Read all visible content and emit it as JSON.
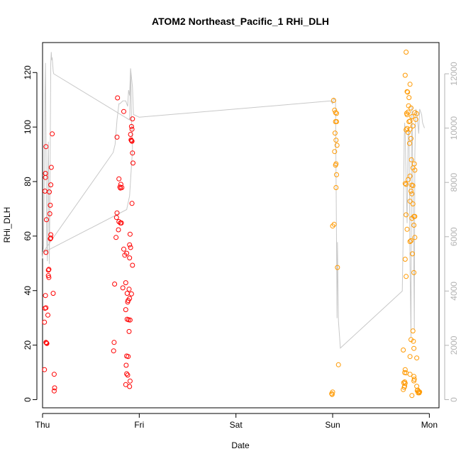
{
  "chart_data": {
    "type": "scatter",
    "title": "ATOM2 Northeast_Pacific_1 RHi_DLH",
    "xlabel": "Date",
    "ylabel": "RHi_DLH",
    "y2label": "",
    "xlim": [
      0,
      4.1
    ],
    "ylim": [
      -3,
      131
    ],
    "y2lim": [
      -300,
      13150
    ],
    "x_ticks": [
      {
        "value": 0,
        "label": "Thu"
      },
      {
        "value": 1,
        "label": "Fri"
      },
      {
        "value": 2,
        "label": "Sat"
      },
      {
        "value": 3,
        "label": "Sun"
      },
      {
        "value": 4,
        "label": "Mon"
      }
    ],
    "y_ticks": [
      0,
      20,
      40,
      60,
      80,
      100,
      120
    ],
    "y2_ticks": [
      0,
      2000,
      4000,
      6000,
      8000,
      10000,
      12000
    ],
    "grid": false,
    "legend": "none",
    "colors": {
      "series_1": "#ff0000",
      "series_2": "#ff9900",
      "altitude": "#c8c8c8"
    },
    "series": [
      {
        "color": "#ff0000",
        "marker": "open-circle",
        "points": [
          [
            0.03,
            83.0
          ],
          [
            0.03,
            81.5
          ],
          [
            0.025,
            76.5
          ],
          [
            0.035,
            92.8
          ],
          [
            0.04,
            66.0
          ],
          [
            0.035,
            54.0
          ],
          [
            0.03,
            38.2
          ],
          [
            0.025,
            33.5
          ],
          [
            0.035,
            33.7
          ],
          [
            0.02,
            28.4
          ],
          [
            0.04,
            20.8
          ],
          [
            0.035,
            21.0
          ],
          [
            0.045,
            20.6
          ],
          [
            0.02,
            11.0
          ],
          [
            0.06,
            47.5
          ],
          [
            0.065,
            47.8
          ],
          [
            0.06,
            45.5
          ],
          [
            0.065,
            44.8
          ],
          [
            0.055,
            31.0
          ],
          [
            0.07,
            76.2
          ],
          [
            0.075,
            68.2
          ],
          [
            0.08,
            71.3
          ],
          [
            0.085,
            78.8
          ],
          [
            0.09,
            85.2
          ],
          [
            0.085,
            60.5
          ],
          [
            0.08,
            59.0
          ],
          [
            0.085,
            59.3
          ],
          [
            0.1,
            97.5
          ],
          [
            0.11,
            39.0
          ],
          [
            0.12,
            9.3
          ],
          [
            0.125,
            4.3
          ],
          [
            0.12,
            3.2
          ],
          [
            0.74,
            21.0
          ],
          [
            0.735,
            17.9
          ],
          [
            0.745,
            42.4
          ],
          [
            0.77,
            96.3
          ],
          [
            0.775,
            110.7
          ],
          [
            0.79,
            81.0
          ],
          [
            0.8,
            78.0
          ],
          [
            0.81,
            79.0
          ],
          [
            0.805,
            77.6
          ],
          [
            0.82,
            77.8
          ],
          [
            0.77,
            68.5
          ],
          [
            0.765,
            66.8
          ],
          [
            0.79,
            65.3
          ],
          [
            0.805,
            64.8
          ],
          [
            0.815,
            64.8
          ],
          [
            0.785,
            62.3
          ],
          [
            0.76,
            59.5
          ],
          [
            0.84,
            55.2
          ],
          [
            0.85,
            53.0
          ],
          [
            0.83,
            41.0
          ],
          [
            0.86,
            42.9
          ],
          [
            0.875,
            39.0
          ],
          [
            0.895,
            40.5
          ],
          [
            0.9,
            37.1
          ],
          [
            0.88,
            35.8
          ],
          [
            0.885,
            36.4
          ],
          [
            0.92,
            38.8
          ],
          [
            0.86,
            33.0
          ],
          [
            0.875,
            29.5
          ],
          [
            0.89,
            29.3
          ],
          [
            0.905,
            29.2
          ],
          [
            0.895,
            25.0
          ],
          [
            0.87,
            16.0
          ],
          [
            0.865,
            12.6
          ],
          [
            0.885,
            15.8
          ],
          [
            0.87,
            9.5
          ],
          [
            0.88,
            9.0
          ],
          [
            0.905,
            6.8
          ],
          [
            0.86,
            5.5
          ],
          [
            0.9,
            4.8
          ],
          [
            0.87,
            53.7
          ],
          [
            0.9,
            52.0
          ],
          [
            0.9,
            56.8
          ],
          [
            0.91,
            55.8
          ],
          [
            0.905,
            60.7
          ],
          [
            0.93,
            49.3
          ],
          [
            0.84,
            105.7
          ],
          [
            0.915,
            95.3
          ],
          [
            0.92,
            100.2
          ],
          [
            0.925,
            99.2
          ],
          [
            0.93,
            103.0
          ],
          [
            0.91,
            97.3
          ],
          [
            0.92,
            95.0
          ],
          [
            0.925,
            94.8
          ],
          [
            0.93,
            90.5
          ],
          [
            0.935,
            86.8
          ],
          [
            0.925,
            72.0
          ]
        ]
      },
      {
        "color": "#ff9900",
        "marker": "open-circle",
        "points": [
          [
            2.99,
            2.2
          ],
          [
            3.0,
            2.8
          ],
          [
            2.995,
            1.9
          ],
          [
            3.01,
            109.8
          ],
          [
            3.02,
            106.2
          ],
          [
            3.03,
            105.3
          ],
          [
            3.04,
            105.0
          ],
          [
            3.03,
            102.0
          ],
          [
            3.04,
            102.0
          ],
          [
            3.025,
            97.8
          ],
          [
            3.035,
            95.2
          ],
          [
            3.045,
            93.3
          ],
          [
            3.02,
            91.0
          ],
          [
            3.03,
            86.0
          ],
          [
            3.035,
            86.5
          ],
          [
            3.04,
            82.5
          ],
          [
            3.035,
            77.8
          ],
          [
            3.0,
            63.7
          ],
          [
            3.015,
            64.3
          ],
          [
            3.05,
            48.5
          ],
          [
            3.06,
            12.8
          ],
          [
            3.76,
            127.5
          ],
          [
            3.75,
            119.0
          ],
          [
            3.77,
            113.0
          ],
          [
            3.775,
            112.8
          ],
          [
            3.79,
            110.8
          ],
          [
            3.785,
            107.8
          ],
          [
            3.8,
            115.7
          ],
          [
            3.81,
            107.0
          ],
          [
            3.77,
            104.5
          ],
          [
            3.765,
            105.0
          ],
          [
            3.78,
            105.5
          ],
          [
            3.8,
            102.2
          ],
          [
            3.82,
            103.8
          ],
          [
            3.79,
            102.0
          ],
          [
            3.76,
            99.0
          ],
          [
            3.77,
            99.5
          ],
          [
            3.78,
            98.0
          ],
          [
            3.8,
            99.2
          ],
          [
            3.81,
            95.8
          ],
          [
            3.795,
            94.0
          ],
          [
            3.83,
            100.4
          ],
          [
            3.85,
            105.3
          ],
          [
            3.87,
            104.9
          ],
          [
            3.86,
            102.8
          ],
          [
            3.815,
            88.0
          ],
          [
            3.845,
            86.5
          ],
          [
            3.85,
            84.2
          ],
          [
            3.83,
            85.0
          ],
          [
            3.8,
            82.0
          ],
          [
            3.78,
            80.7
          ],
          [
            3.75,
            79.3
          ],
          [
            3.76,
            79.0
          ],
          [
            3.82,
            78.7
          ],
          [
            3.83,
            78.5
          ],
          [
            3.81,
            76.5
          ],
          [
            3.82,
            75.5
          ],
          [
            3.8,
            72.8
          ],
          [
            3.83,
            71.8
          ],
          [
            3.76,
            67.8
          ],
          [
            3.82,
            66.5
          ],
          [
            3.85,
            67.2
          ],
          [
            3.84,
            67.2
          ],
          [
            3.84,
            64.0
          ],
          [
            3.77,
            62.5
          ],
          [
            3.81,
            58.3
          ],
          [
            3.8,
            58.0
          ],
          [
            3.825,
            53.5
          ],
          [
            3.85,
            59.5
          ],
          [
            3.75,
            51.5
          ],
          [
            3.84,
            46.6
          ],
          [
            3.76,
            45.2
          ],
          [
            3.83,
            25.2
          ],
          [
            3.81,
            22.0
          ],
          [
            3.835,
            21.4
          ],
          [
            3.84,
            18.8
          ],
          [
            3.73,
            18.2
          ],
          [
            3.8,
            15.8
          ],
          [
            3.87,
            15.3
          ],
          [
            3.75,
            11.0
          ],
          [
            3.745,
            9.9
          ],
          [
            3.76,
            9.8
          ],
          [
            3.8,
            9.3
          ],
          [
            3.84,
            8.5
          ],
          [
            3.845,
            7.5
          ],
          [
            3.84,
            6.9
          ],
          [
            3.745,
            6.5
          ],
          [
            3.735,
            6.2
          ],
          [
            3.75,
            6.0
          ],
          [
            3.745,
            5.0
          ],
          [
            3.74,
            4.5
          ],
          [
            3.73,
            3.7
          ],
          [
            3.87,
            4.9
          ],
          [
            3.88,
            3.5
          ],
          [
            3.875,
            3.3
          ],
          [
            3.89,
            3.0
          ],
          [
            3.9,
            2.8
          ],
          [
            3.885,
            2.5
          ],
          [
            3.895,
            2.5
          ],
          [
            3.82,
            1.5
          ]
        ]
      }
    ],
    "altitude_line": {
      "color": "#c8c8c8",
      "axis": "right",
      "points": [
        [
          0.0,
          5200
        ],
        [
          0.01,
          5700
        ],
        [
          0.02,
          8600
        ],
        [
          0.025,
          11200
        ],
        [
          0.03,
          12400
        ],
        [
          0.035,
          9800
        ],
        [
          0.04,
          6800
        ],
        [
          0.045,
          5600
        ],
        [
          0.05,
          5100
        ],
        [
          0.055,
          8400
        ],
        [
          0.06,
          9500
        ],
        [
          0.065,
          7200
        ],
        [
          0.07,
          5000
        ],
        [
          0.075,
          6800
        ],
        [
          0.08,
          9600
        ],
        [
          0.085,
          12400
        ],
        [
          0.09,
          12800
        ],
        [
          0.095,
          12500
        ],
        [
          0.1,
          12600
        ],
        [
          0.11,
          12100
        ],
        [
          0.115,
          12000
        ],
        [
          0.9,
          10300
        ],
        [
          0.905,
          11000
        ],
        [
          0.91,
          12200
        ],
        [
          0.915,
          11300
        ],
        [
          0.92,
          10200
        ],
        [
          0.925,
          10000
        ],
        [
          0.93,
          9200
        ],
        [
          0.9,
          7500
        ],
        [
          0.87,
          7000
        ],
        [
          0.0,
          5400
        ],
        [
          0.73,
          9100
        ],
        [
          0.75,
          9400
        ],
        [
          0.77,
          10300
        ],
        [
          0.79,
          10900
        ],
        [
          0.8,
          10900
        ],
        [
          0.83,
          11000
        ],
        [
          0.86,
          11000
        ],
        [
          0.88,
          10800
        ],
        [
          0.89,
          11400
        ],
        [
          0.9,
          11200
        ],
        [
          0.91,
          12200
        ],
        [
          0.93,
          11500
        ],
        [
          0.94,
          10500
        ],
        [
          1.0,
          10400
        ],
        [
          2.98,
          11000
        ],
        [
          3.0,
          10900
        ],
        [
          3.01,
          11100
        ],
        [
          3.03,
          11000
        ],
        [
          3.04,
          5800
        ],
        [
          3.045,
          3000
        ],
        [
          3.05,
          5800
        ],
        [
          3.06,
          2900
        ],
        [
          3.08,
          1900
        ],
        [
          3.72,
          4000
        ],
        [
          3.73,
          6200
        ],
        [
          3.74,
          9600
        ],
        [
          3.745,
          10200
        ],
        [
          3.75,
          9800
        ],
        [
          3.76,
          8000
        ],
        [
          3.77,
          6500
        ],
        [
          3.78,
          9800
        ],
        [
          3.79,
          10000
        ],
        [
          3.8,
          5000
        ],
        [
          3.81,
          2300
        ],
        [
          3.815,
          8600
        ],
        [
          3.82,
          10800
        ],
        [
          3.83,
          8000
        ],
        [
          3.84,
          4500
        ],
        [
          3.845,
          2600
        ],
        [
          3.85,
          9000
        ],
        [
          3.86,
          10700
        ],
        [
          3.87,
          10600
        ],
        [
          3.88,
          10200
        ],
        [
          3.89,
          9800
        ],
        [
          3.9,
          10700
        ],
        [
          3.92,
          10500
        ],
        [
          3.93,
          10200
        ],
        [
          3.95,
          10000
        ]
      ]
    }
  }
}
